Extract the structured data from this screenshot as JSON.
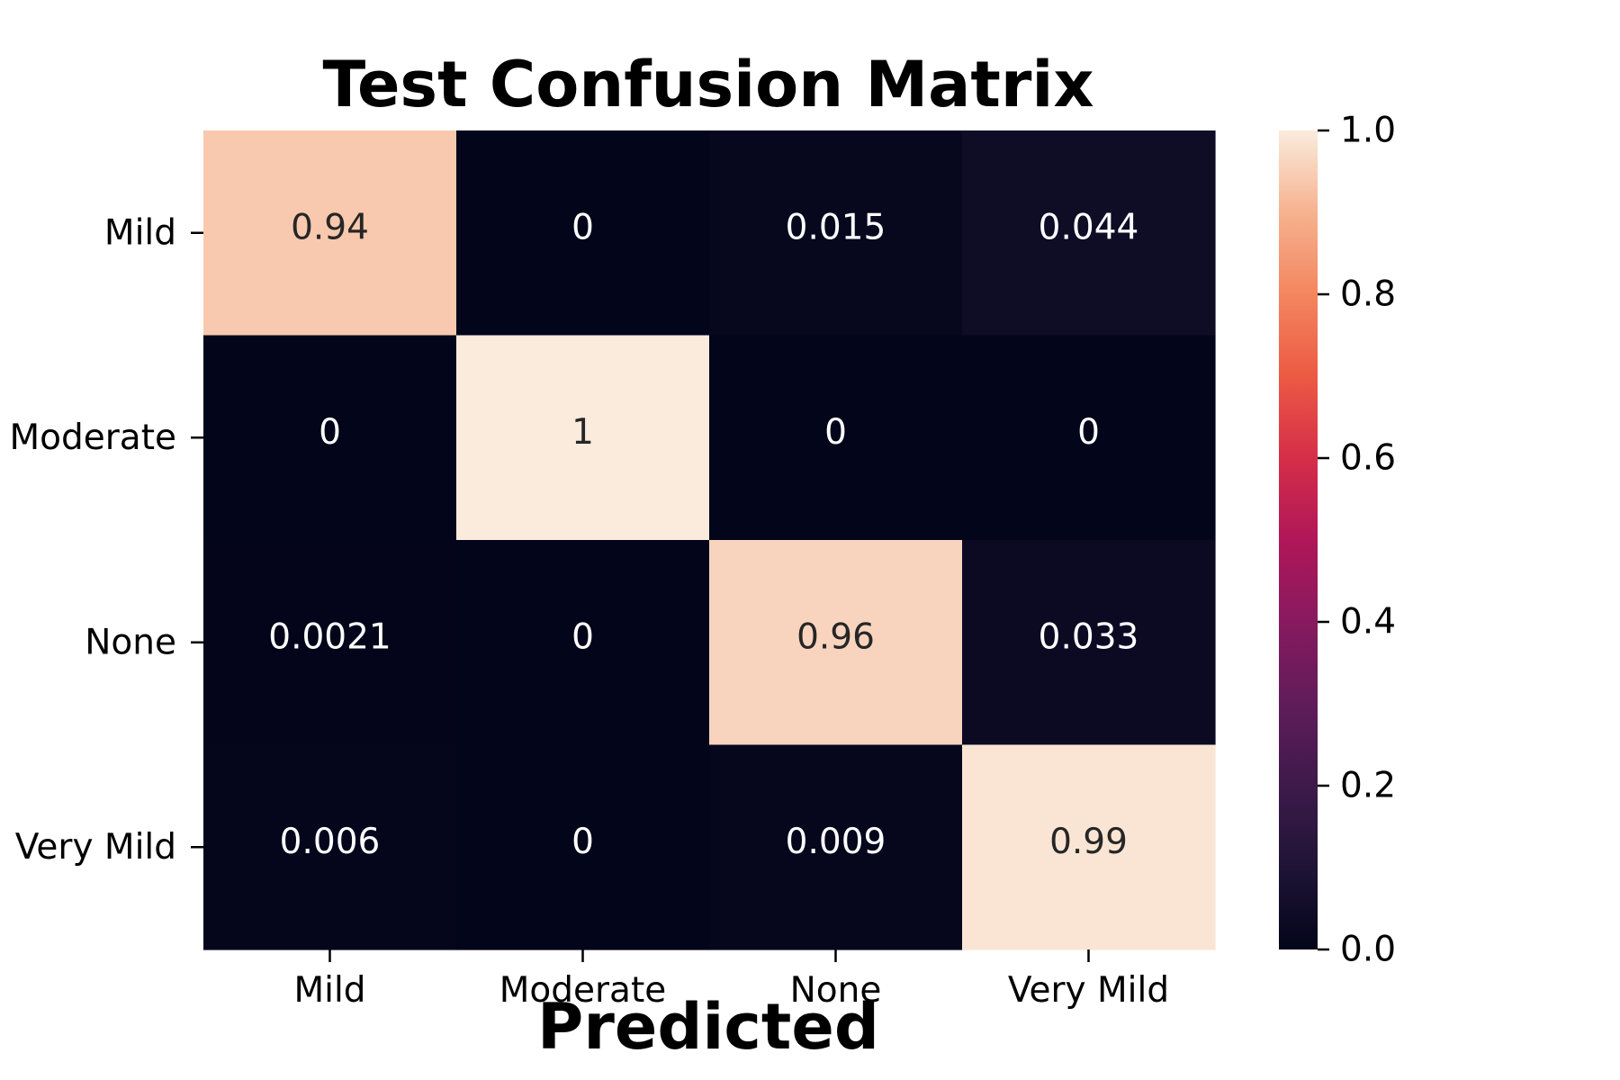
{
  "chart_data": {
    "type": "heatmap",
    "title": "Test Confusion Matrix",
    "xlabel": "Predicted",
    "ylabel": "",
    "x_categories": [
      "Mild",
      "Moderate",
      "None",
      "Very Mild"
    ],
    "y_categories": [
      "Mild",
      "Moderate",
      "None",
      "Very Mild"
    ],
    "values": [
      [
        0.94,
        0,
        0.015,
        0.044
      ],
      [
        0,
        1,
        0,
        0
      ],
      [
        0.0021,
        0,
        0.96,
        0.033
      ],
      [
        0.006,
        0,
        0.009,
        0.99
      ]
    ],
    "cell_labels": [
      [
        "0.94",
        "0",
        "0.015",
        "0.044"
      ],
      [
        "0",
        "1",
        "0",
        "0"
      ],
      [
        "0.0021",
        "0",
        "0.96",
        "0.033"
      ],
      [
        "0.006",
        "0",
        "0.009",
        "0.99"
      ]
    ],
    "colorbar": {
      "range": [
        0,
        1
      ],
      "ticks": [
        0.0,
        0.2,
        0.4,
        0.6,
        0.8,
        1.0
      ],
      "tick_labels": [
        "0.0",
        "0.2",
        "0.4",
        "0.6",
        "0.8",
        "1.0"
      ],
      "colormap": "rocket",
      "stops": [
        {
          "v": 0.0,
          "c": "#03051a"
        },
        {
          "v": 0.1,
          "c": "#1f1436"
        },
        {
          "v": 0.2,
          "c": "#3d1a4a"
        },
        {
          "v": 0.3,
          "c": "#601c5a"
        },
        {
          "v": 0.4,
          "c": "#871a5f"
        },
        {
          "v": 0.5,
          "c": "#b01758"
        },
        {
          "v": 0.6,
          "c": "#d52e48"
        },
        {
          "v": 0.7,
          "c": "#ec5a44"
        },
        {
          "v": 0.8,
          "c": "#f3865f"
        },
        {
          "v": 0.9,
          "c": "#f6b28f"
        },
        {
          "v": 1.0,
          "c": "#faebdd"
        }
      ]
    }
  }
}
